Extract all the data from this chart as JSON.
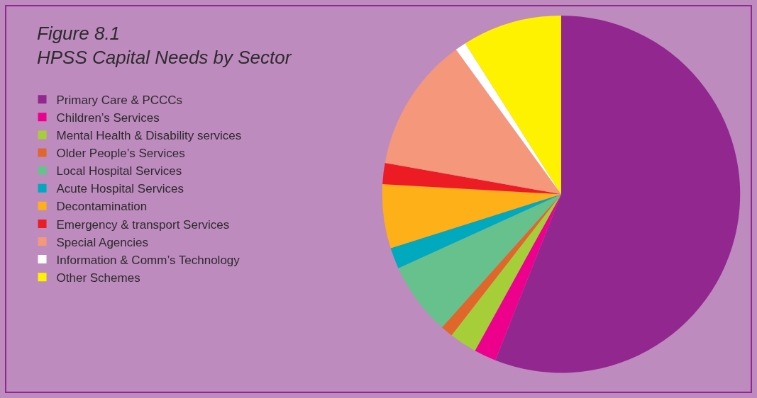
{
  "chart_data": {
    "type": "pie",
    "title": "Figure 8.1\nHPSS Capital Needs by Sector",
    "categories": [
      "Primary Care & PCCCs",
      "Children’s Services",
      "Mental Health & Disability services",
      "Older People’s Services",
      "Local Hospital Services",
      "Acute Hospital Services",
      "Decontamination",
      "Emergency & transport Services",
      "Special Agencies",
      "Information & Comm’s Technology",
      "Other Schemes"
    ],
    "values": [
      56.0,
      2.0,
      2.5,
      1.1,
      6.6,
      1.9,
      5.8,
      1.9,
      12.2,
      1.0,
      9.0
    ],
    "colors": [
      "#92278f",
      "#ec008c",
      "#a6ce39",
      "#e0662a",
      "#66c18c",
      "#00a9bd",
      "#fdb018",
      "#ed1c24",
      "#f4977a",
      "#ffffff",
      "#fff200"
    ],
    "legend": "left"
  }
}
